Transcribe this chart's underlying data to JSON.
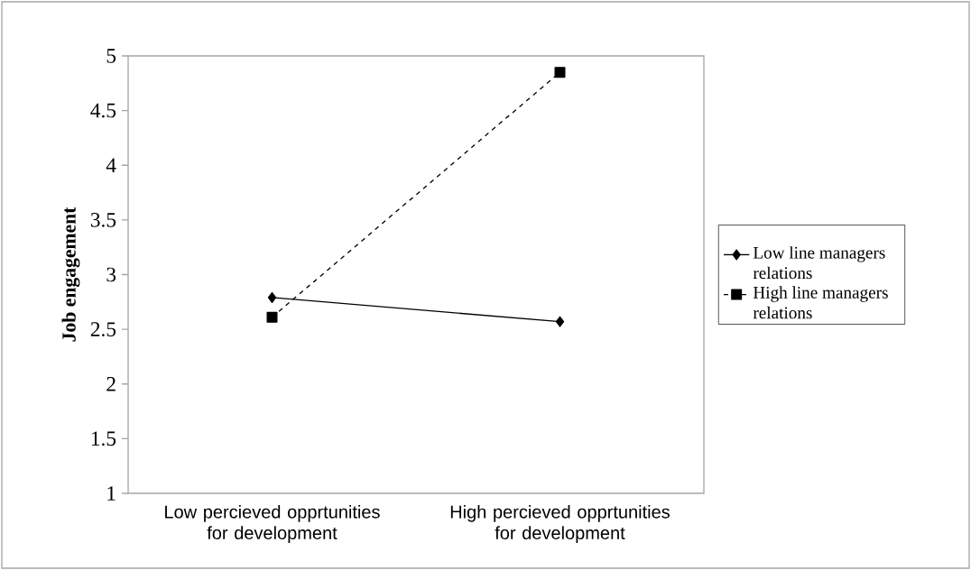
{
  "chart_data": {
    "type": "line",
    "ylabel": "Job engagement",
    "categories": [
      "Low percieved opprtunities for development",
      "High percieved opprtunities for development"
    ],
    "series": [
      {
        "name": "Low line managers relations",
        "color": "#000000",
        "values": [
          2.79,
          2.57
        ],
        "marker": "diamond",
        "line_style": "solid"
      },
      {
        "name": "High line managers relations",
        "color": "#000000",
        "values": [
          2.61,
          4.85
        ],
        "marker": "square",
        "line_style": "dashed"
      }
    ],
    "ylim": [
      1,
      5
    ],
    "yticks": [
      1,
      1.5,
      2,
      2.5,
      3,
      3.5,
      4,
      4.5,
      5
    ],
    "grid": false,
    "legend": "right"
  }
}
